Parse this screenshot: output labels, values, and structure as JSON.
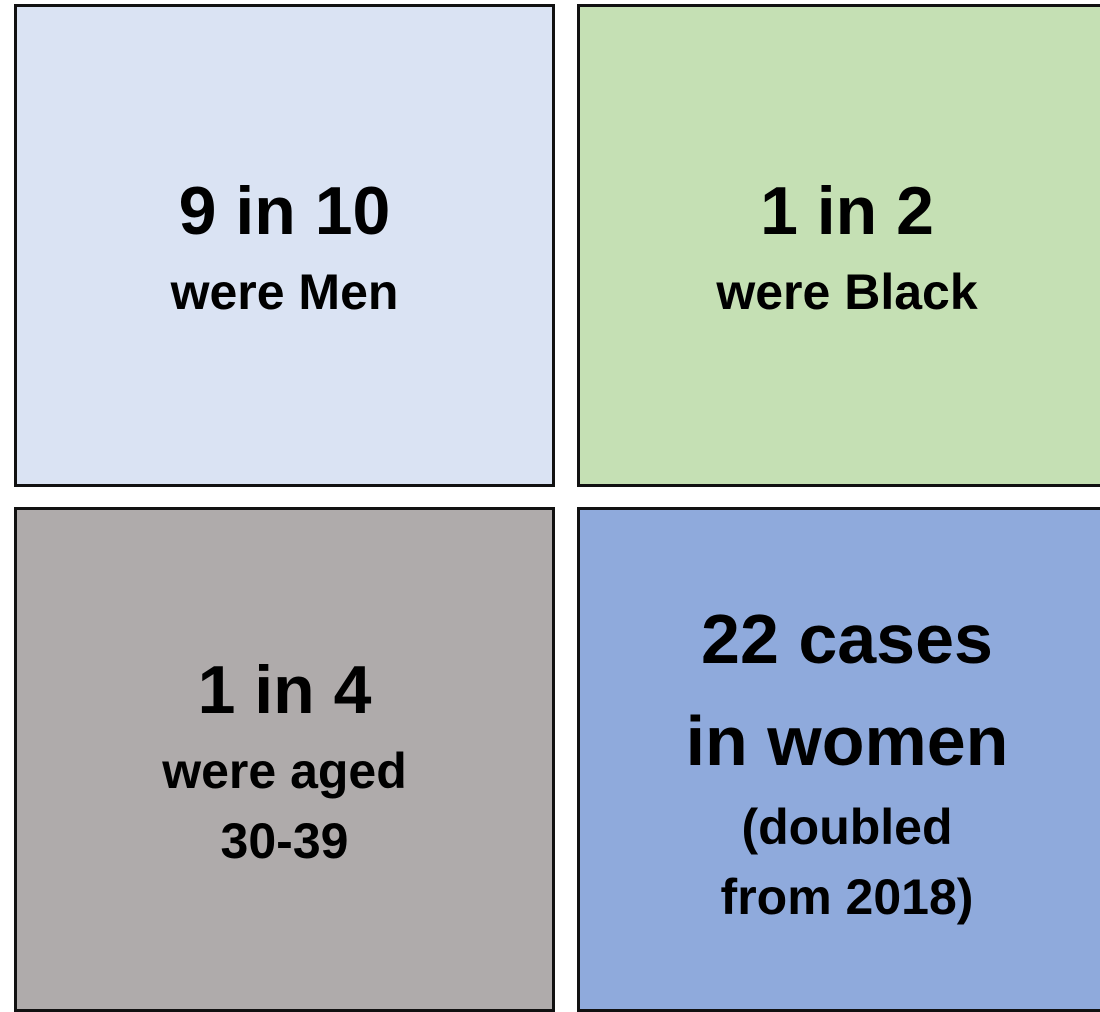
{
  "tiles": [
    {
      "headline": [
        "9 in 10"
      ],
      "detail": [
        "were Men"
      ]
    },
    {
      "headline": [
        "1 in 2"
      ],
      "detail": [
        "were Black"
      ]
    },
    {
      "headline": [
        "1 in 4"
      ],
      "detail": [
        "were aged",
        "30-39"
      ]
    },
    {
      "headline": [
        "22 cases",
        "in women"
      ],
      "detail": [
        "(doubled",
        "from 2018)"
      ]
    }
  ]
}
